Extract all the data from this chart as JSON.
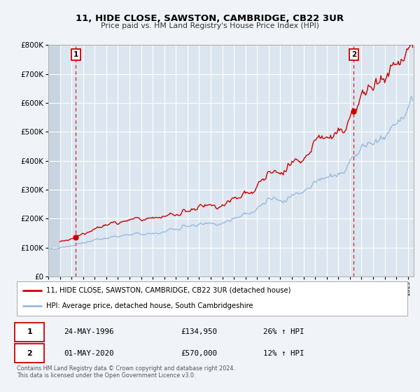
{
  "title": "11, HIDE CLOSE, SAWSTON, CAMBRIDGE, CB22 3UR",
  "subtitle": "Price paid vs. HM Land Registry's House Price Index (HPI)",
  "bg_color": "#f0f4f8",
  "plot_bg_color": "#dce6f0",
  "hatch_color": "#c8d4e0",
  "grid_color": "#ffffff",
  "red_line_color": "#cc0000",
  "blue_line_color": "#99bbdd",
  "marker1_date": 1996.37,
  "marker1_value": 134950,
  "marker2_date": 2020.33,
  "marker2_value": 570000,
  "sale1_label": "24-MAY-1996",
  "sale1_price": "£134,950",
  "sale1_hpi": "26% ↑ HPI",
  "sale2_label": "01-MAY-2020",
  "sale2_price": "£570,000",
  "sale2_hpi": "12% ↑ HPI",
  "legend_red": "11, HIDE CLOSE, SAWSTON, CAMBRIDGE, CB22 3UR (detached house)",
  "legend_blue": "HPI: Average price, detached house, South Cambridgeshire",
  "footer": "Contains HM Land Registry data © Crown copyright and database right 2024.\nThis data is licensed under the Open Government Licence v3.0.",
  "xmin": 1994.0,
  "xmax": 2025.5,
  "ymin": 0,
  "ymax": 800000
}
